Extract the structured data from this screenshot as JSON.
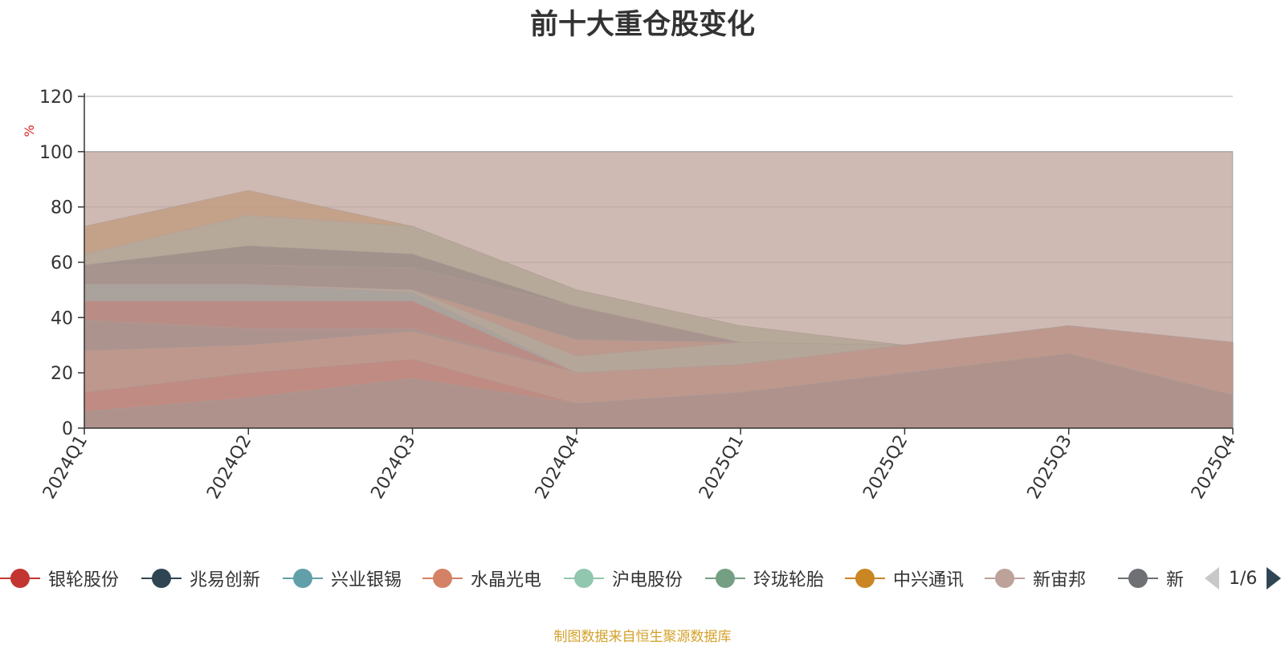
{
  "title": "前十大重仓股变化",
  "footer": "制图数据来自恒生聚源数据库",
  "pager": {
    "text": "1/6"
  },
  "chart_data": {
    "type": "area",
    "stacked": true,
    "unit_label": "%",
    "categories": [
      "2024Q1",
      "2024Q2",
      "2024Q3",
      "2024Q4",
      "2025Q1",
      "2025Q2",
      "2025Q3",
      "2025Q4"
    ],
    "ylim": [
      0,
      120
    ],
    "yticks": [
      0,
      20,
      40,
      60,
      80,
      100,
      120
    ],
    "grid": true,
    "legend_position": "bottom",
    "series": [
      {
        "name": "银轮股份",
        "color": "#c23531"
      },
      {
        "name": "兆易创新",
        "color": "#2f4554"
      },
      {
        "name": "兴业银锡",
        "color": "#61a0a8"
      },
      {
        "name": "水晶光电",
        "color": "#d48265"
      },
      {
        "name": "沪电股份",
        "color": "#91c7ae"
      },
      {
        "name": "玲珑轮胎",
        "color": "#749f83"
      },
      {
        "name": "中兴通讯",
        "color": "#ca8622"
      },
      {
        "name": "新宙邦",
        "color": "#bda29a"
      },
      {
        "name": "新",
        "color": "#6e7074"
      }
    ],
    "layers": [
      {
        "color": "#2f4554",
        "values": [
          0,
          0,
          0,
          0,
          0,
          0,
          0,
          0
        ]
      },
      {
        "color": "#6e7074",
        "values": [
          6,
          11,
          18,
          9,
          13,
          20,
          27,
          12
        ]
      },
      {
        "color": "#c23531",
        "values": [
          13,
          20,
          25,
          9,
          13,
          20,
          27,
          12
        ]
      },
      {
        "color": "#d48265",
        "values": [
          28,
          30,
          35,
          20,
          23,
          30,
          37,
          31
        ]
      },
      {
        "color": "#6e7074",
        "values": [
          39,
          36,
          36,
          20,
          23,
          30,
          37,
          31
        ]
      },
      {
        "color": "#c23531",
        "values": [
          46,
          46,
          46,
          20,
          23,
          30,
          37,
          31
        ]
      },
      {
        "color": "#61a0a8",
        "values": [
          52,
          52,
          49,
          20,
          23,
          30,
          37,
          31
        ]
      },
      {
        "color": "#91c7ae",
        "values": [
          52,
          52,
          50,
          26,
          31,
          30,
          37,
          31
        ]
      },
      {
        "color": "#d48265",
        "values": [
          52,
          52,
          50,
          32,
          31,
          30,
          37,
          31
        ]
      },
      {
        "color": "#6e7074",
        "values": [
          59,
          59,
          58,
          44,
          31,
          30,
          37,
          31
        ]
      },
      {
        "color": "#2f4554",
        "values": [
          59,
          66,
          63,
          44,
          31,
          30,
          37,
          31
        ]
      },
      {
        "color": "#91c7ae",
        "values": [
          63,
          77,
          73,
          50,
          37,
          30,
          37,
          31
        ]
      },
      {
        "color": "#ca8622",
        "values": [
          73,
          86,
          73,
          50,
          37,
          30,
          37,
          31
        ]
      },
      {
        "color": "#bda29a",
        "values": [
          100,
          100,
          100,
          100,
          100,
          100,
          100,
          100
        ]
      }
    ]
  }
}
